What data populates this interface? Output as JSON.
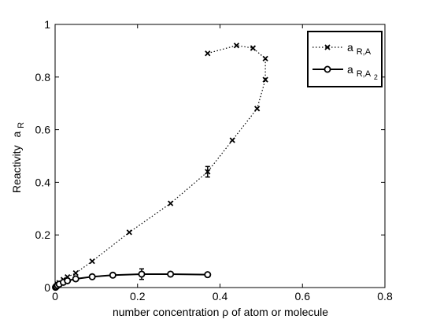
{
  "chart_data": {
    "type": "line",
    "xlabel": "number concentration ρ of atom or molecule",
    "ylabel": "Reactivity",
    "ylabel_symbol": "a",
    "ylabel_sub": "R",
    "xlim": [
      0,
      0.8
    ],
    "ylim": [
      0,
      1
    ],
    "xticks": [
      "0",
      "0.2",
      "0.4",
      "0.6",
      "0.8"
    ],
    "yticks": [
      "0",
      "0.2",
      "0.4",
      "0.6",
      "0.8",
      "1"
    ],
    "legend_position": "top-right",
    "grid": false,
    "series": [
      {
        "legend_symbol": "a",
        "legend_sub": "R,A",
        "line_style": "dotted",
        "marker": "x",
        "color": "#000000",
        "x": [
          0.001,
          0.003,
          0.006,
          0.01,
          0.02,
          0.03,
          0.05,
          0.09,
          0.18,
          0.28,
          0.37,
          0.43,
          0.49,
          0.51,
          0.51,
          0.48,
          0.44,
          0.37
        ],
        "y": [
          0.002,
          0.006,
          0.012,
          0.018,
          0.03,
          0.04,
          0.055,
          0.1,
          0.21,
          0.32,
          0.44,
          0.56,
          0.68,
          0.79,
          0.87,
          0.91,
          0.92,
          0.89
        ],
        "error_bar_indices": [
          10
        ],
        "error": 0.02
      },
      {
        "legend_symbol": "a",
        "legend_sub": "R,A",
        "legend_subsub": "2",
        "line_style": "solid",
        "marker": "o",
        "color": "#000000",
        "x": [
          0.001,
          0.003,
          0.006,
          0.01,
          0.02,
          0.03,
          0.05,
          0.09,
          0.14,
          0.21,
          0.28,
          0.37
        ],
        "y": [
          0.001,
          0.004,
          0.008,
          0.013,
          0.02,
          0.026,
          0.033,
          0.041,
          0.047,
          0.051,
          0.051,
          0.049
        ],
        "error_bar_indices": [
          9
        ],
        "error": 0.02
      }
    ]
  }
}
